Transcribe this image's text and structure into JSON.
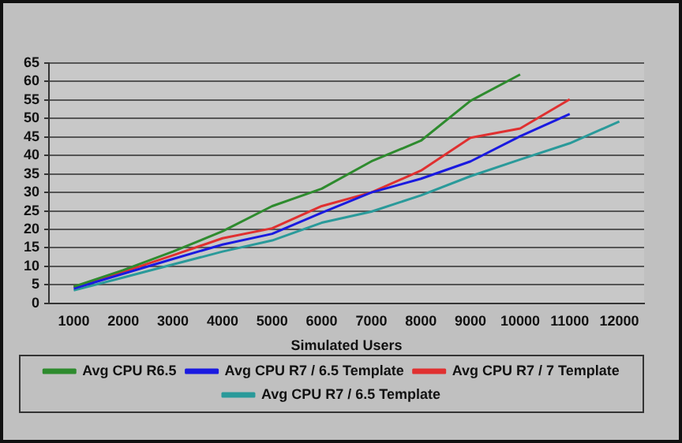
{
  "chart_data": {
    "type": "line",
    "xlabel": "Simulated Users",
    "categories": [
      "1000",
      "2000",
      "3000",
      "4000",
      "5000",
      "6000",
      "7000",
      "8000",
      "9000",
      "10000",
      "11000",
      "12000"
    ],
    "series": [
      {
        "name": "Avg CPU R6.5",
        "color": "#2e8b2e",
        "values": [
          4.5,
          9,
          14,
          19.5,
          26.3,
          31,
          38.4,
          44,
          54.8,
          61.9,
          null,
          null
        ]
      },
      {
        "name": "Avg CPU R7 / 6.5 Template",
        "color": "#1a1ae0",
        "values": [
          4,
          8,
          12,
          15.9,
          18.8,
          24.5,
          30,
          33.7,
          38.4,
          45.2,
          51.2,
          null
        ]
      },
      {
        "name": "Avg CPU R7 / 7 Template",
        "color": "#e03030",
        "values": [
          4.4,
          8.5,
          13,
          17.6,
          20.3,
          26.3,
          30,
          35.9,
          44.8,
          47.3,
          55.2,
          null
        ]
      },
      {
        "name": "Avg CPU R7 / 6.5 Template",
        "color": "#2a9a9a",
        "values": [
          3.5,
          7,
          10.5,
          14,
          17,
          21.8,
          24.8,
          29.2,
          34.4,
          38.9,
          43.3,
          49.2
        ]
      }
    ],
    "ylim": [
      0,
      65
    ],
    "yticks": [
      0,
      5,
      10,
      15,
      20,
      25,
      30,
      35,
      40,
      45,
      50,
      55,
      60,
      65
    ],
    "grid": "y",
    "legend": "bottom",
    "marker": "none",
    "line_style": "solid"
  }
}
